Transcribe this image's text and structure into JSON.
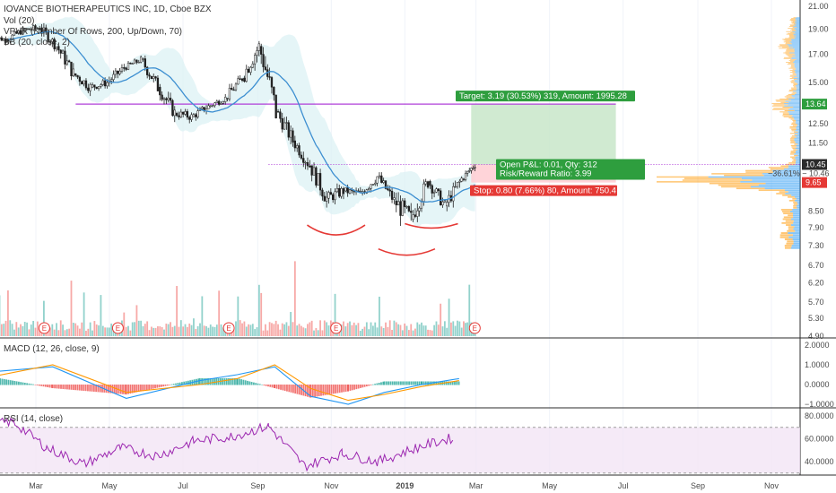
{
  "legend": {
    "title": "IOVANCE BIOTHERAPEUTICS INC, 1D, Cboe BZX",
    "vol": "Vol (20)",
    "vpvr": "VPVR (Number Of Rows, 200, Up/Down, 70)",
    "bb": "BB (20, close, 2)",
    "macd": "MACD (12, 26, close, 9)",
    "rsi": "RSI (14, close)"
  },
  "colors": {
    "up": "#26a69a",
    "down": "#ef5350",
    "bb_basis": "#3d8fd1",
    "bb_fill": "#dcf1f4",
    "macd_line": "#2196f3",
    "signal_line": "#ff9800",
    "rsi_line": "#9c27b0",
    "rsi_band": "#f3e5f5",
    "target_zone": "#c8e6c9",
    "stop_zone": "#ffcdd2",
    "vpvr_up": "#2196f3",
    "vpvr_down": "#ff9800",
    "pattern": "#e53935",
    "level": "#b040d8"
  },
  "chart_data": [
    {
      "type": "candlestick",
      "panel": "price",
      "y_ticks": [
        "21.00",
        "19.00",
        "17.00",
        "15.00",
        "13.64",
        "12.50",
        "11.50",
        "10.45",
        "9.65",
        "8.50",
        "7.90",
        "7.30",
        "6.70",
        "6.20",
        "5.70",
        "5.30",
        "4.90"
      ],
      "x_ticks": [
        "Mar",
        "May",
        "Jul",
        "Sep",
        "Nov",
        "2019",
        "Mar",
        "May",
        "Jul",
        "Sep",
        "Nov"
      ],
      "series": [
        {
          "kind": "ohlc",
          "points": [
            [
              "2018-01-22",
              18.4,
              18.9,
              17.6,
              18.1
            ],
            [
              "2018-02-05",
              18.1,
              19.4,
              17.8,
              18.9
            ],
            [
              "2018-02-19",
              18.9,
              19.9,
              18.3,
              19.1
            ],
            [
              "2018-03-05",
              19.1,
              19.5,
              17.2,
              17.6
            ],
            [
              "2018-03-19",
              17.6,
              17.9,
              15.1,
              15.6
            ],
            [
              "2018-04-02",
              15.6,
              16.1,
              14.1,
              14.7
            ],
            [
              "2018-04-16",
              14.7,
              15.4,
              14.0,
              15.0
            ],
            [
              "2018-04-30",
              15.0,
              16.3,
              14.6,
              16.0
            ],
            [
              "2018-05-14",
              16.0,
              16.9,
              15.7,
              16.6
            ],
            [
              "2018-05-28",
              16.6,
              16.9,
              14.3,
              14.7
            ],
            [
              "2018-06-11",
              14.7,
              14.9,
              12.6,
              13.1
            ],
            [
              "2018-06-25",
              13.1,
              13.7,
              12.3,
              12.9
            ],
            [
              "2018-07-09",
              12.9,
              13.9,
              12.6,
              13.5
            ],
            [
              "2018-07-23",
              13.5,
              14.3,
              13.2,
              14.0
            ],
            [
              "2018-08-06",
              14.0,
              15.6,
              13.8,
              15.3
            ],
            [
              "2018-08-20",
              15.3,
              18.3,
              15.0,
              17.6
            ],
            [
              "2018-09-03",
              17.6,
              17.8,
              12.8,
              13.2
            ],
            [
              "2018-09-17",
              13.2,
              13.6,
              11.3,
              11.6
            ],
            [
              "2018-10-01",
              11.6,
              12.0,
              10.2,
              10.4
            ],
            [
              "2018-10-15",
              10.4,
              10.6,
              8.6,
              9.0
            ],
            [
              "2018-10-29",
              9.0,
              9.8,
              8.5,
              9.3
            ],
            [
              "2018-11-12",
              9.3,
              9.7,
              8.8,
              9.2
            ],
            [
              "2018-11-26",
              9.2,
              10.3,
              9.0,
              9.9
            ],
            [
              "2018-12-10",
              9.9,
              10.1,
              8.7,
              8.9
            ],
            [
              "2018-12-24",
              8.9,
              9.4,
              7.3,
              8.2
            ],
            [
              "2019-01-07",
              8.2,
              10.0,
              8.1,
              9.7
            ],
            [
              "2019-01-21",
              9.7,
              9.9,
              8.5,
              8.7
            ],
            [
              "2019-02-04",
              8.7,
              10.0,
              8.5,
              9.8
            ],
            [
              "2019-02-18",
              9.8,
              10.6,
              9.7,
              10.45
            ]
          ]
        }
      ],
      "annotations": {
        "target_label": "Target: 3.19 (30.53%) 319, Amount: 1995.28",
        "pnl_label": "Open P&L: 0.01, Qty: 312",
        "rr_label": "Risk/Reward Ratio: 3.99",
        "stop_label": "Stop: 0.80 (7.66%) 80, Amount: 750.4",
        "entry": 10.45,
        "target": 13.64,
        "stop": 9.65,
        "price_tag": "10.45",
        "target_tag": "13.64",
        "stop_tag": "9.65",
        "vpvr_tag": "−36.61% − 10.46",
        "resistance_level": 13.64,
        "earnings_marker": "E"
      }
    },
    {
      "type": "bar",
      "panel": "volume",
      "series": [
        {
          "name": "Vol (20)",
          "x": [
            "2018-05-14",
            "2018-07-09",
            "2018-09-03",
            "2018-10-01",
            "2018-12-10"
          ],
          "values": [
            1.2,
            0.9,
            2.6,
            3.8,
            2.0
          ]
        }
      ]
    },
    {
      "type": "line",
      "panel": "macd",
      "y_ticks": [
        "2.0000",
        "1.0000",
        "0.0000",
        "−1.0000"
      ],
      "series": [
        {
          "name": "MACD",
          "x": [
            "2018-01",
            "2018-03",
            "2018-05",
            "2018-07",
            "2018-08",
            "2018-09",
            "2018-10",
            "2018-11",
            "2018-12",
            "2019-01",
            "2019-02"
          ],
          "values": [
            0.6,
            0.9,
            -0.7,
            0.2,
            0.5,
            0.9,
            -0.6,
            -1.0,
            -0.4,
            0.0,
            0.3
          ]
        },
        {
          "name": "Signal",
          "x": [
            "2018-01",
            "2018-03",
            "2018-05",
            "2018-07",
            "2018-08",
            "2018-09",
            "2018-10",
            "2018-11",
            "2018-12",
            "2019-01",
            "2019-02"
          ],
          "values": [
            0.3,
            1.0,
            -0.4,
            0.0,
            0.3,
            1.0,
            -0.2,
            -0.8,
            -0.5,
            -0.1,
            0.2
          ]
        }
      ]
    },
    {
      "type": "line",
      "panel": "rsi",
      "y_ticks": [
        "80.0000",
        "60.0000",
        "40.0000"
      ],
      "series": [
        {
          "name": "RSI",
          "x": [
            "2018-01",
            "2018-02",
            "2018-03",
            "2018-04",
            "2018-05",
            "2018-06",
            "2018-07",
            "2018-08",
            "2018-09",
            "2018-10",
            "2018-11",
            "2018-12",
            "2019-01",
            "2019-02"
          ],
          "values": [
            72,
            75,
            52,
            38,
            52,
            45,
            58,
            62,
            71,
            36,
            47,
            40,
            52,
            61
          ]
        }
      ]
    }
  ]
}
